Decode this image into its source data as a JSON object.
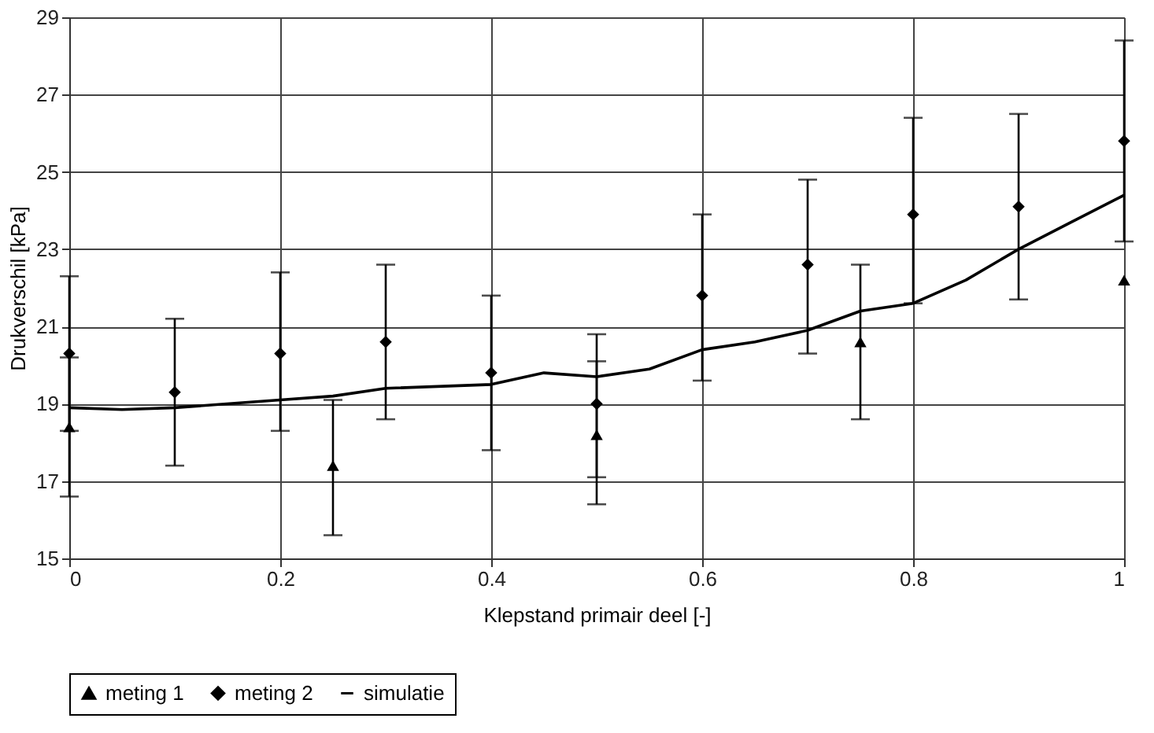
{
  "chart_data": {
    "type": "scatter",
    "xlabel": "Klepstand primair deel [-]",
    "ylabel": "Drukverschil [kPa]",
    "xlim": [
      0,
      1
    ],
    "xticks": [
      {
        "value": 0,
        "label": "0"
      },
      0.2,
      0.4,
      0.6,
      0.8,
      {
        "value": 1,
        "label": "1"
      }
    ],
    "ylim": [
      15,
      29
    ],
    "yticks": [
      15,
      17,
      19,
      21,
      23,
      25,
      27,
      29
    ],
    "grid": true,
    "legend": "bottom",
    "series": [
      {
        "name": "meting 1",
        "marker": "triangle",
        "color": "#000000",
        "x": [
          0,
          0.25,
          0.5,
          0.75,
          1
        ],
        "values": [
          18.4,
          17.4,
          18.2,
          20.6,
          22.2
        ],
        "errors": [
          [
            16.6,
            20.2
          ],
          [
            15.6,
            19.1
          ],
          [
            16.4,
            20.1
          ],
          [
            18.6,
            22.6
          ],
          null
        ]
      },
      {
        "name": "meting 2",
        "marker": "diamond",
        "color": "#000000",
        "x": [
          0,
          0.1,
          0.2,
          0.3,
          0.4,
          0.5,
          0.6,
          0.7,
          0.8,
          0.9,
          1
        ],
        "values": [
          20.3,
          19.3,
          20.3,
          20.6,
          19.8,
          19.0,
          21.8,
          22.6,
          23.9,
          24.1,
          25.8
        ],
        "errors": [
          [
            18.3,
            22.3
          ],
          [
            17.4,
            21.2
          ],
          [
            18.3,
            22.4
          ],
          [
            18.6,
            22.6
          ],
          [
            17.8,
            21.8
          ],
          [
            17.1,
            20.8
          ],
          [
            19.6,
            23.9
          ],
          [
            20.3,
            24.8
          ],
          [
            21.6,
            26.4
          ],
          [
            21.7,
            26.5
          ],
          [
            23.2,
            28.4
          ]
        ]
      },
      {
        "name": "simulatie",
        "type": "line",
        "marker": "none",
        "line_style": "solid",
        "color": "#000000",
        "x": [
          0,
          0.05,
          0.1,
          0.2,
          0.25,
          0.3,
          0.4,
          0.45,
          0.5,
          0.55,
          0.6,
          0.65,
          0.7,
          0.75,
          0.8,
          0.85,
          0.9,
          0.95,
          1
        ],
        "values": [
          18.9,
          18.85,
          18.9,
          19.1,
          19.2,
          19.4,
          19.5,
          19.8,
          19.7,
          19.9,
          20.4,
          20.6,
          20.9,
          21.4,
          21.6,
          22.2,
          23.0,
          23.7,
          24.4
        ]
      }
    ]
  }
}
